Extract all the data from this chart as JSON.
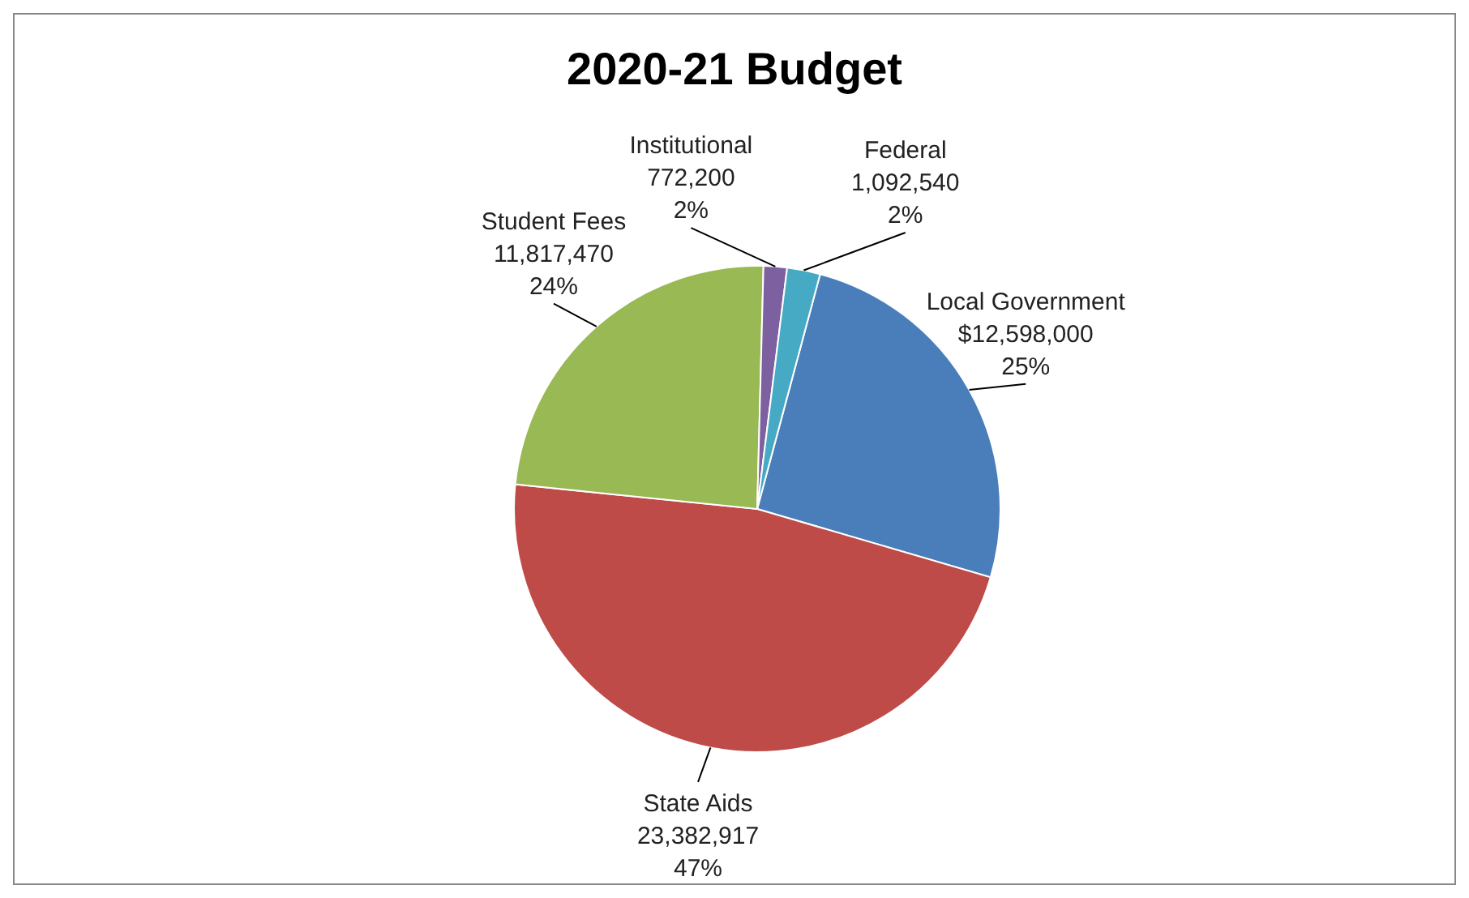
{
  "chart_data": {
    "type": "pie",
    "title": "2020-21 Budget",
    "categories": [
      "Local Government",
      "State Aids",
      "Student Fees",
      "Institutional",
      "Federal"
    ],
    "values": [
      12598000,
      23382917,
      11817470,
      772200,
      1092540
    ],
    "colors": [
      "#4a7ebb",
      "#be4b48",
      "#98b954",
      "#7d60a0",
      "#46aac5"
    ],
    "value_labels": [
      "$12,598,000\n25%",
      "23,382,917\n47%",
      "11,817,470\n24%",
      "772,200\n2%",
      "1,092,540\n2%"
    ],
    "legend": false
  }
}
